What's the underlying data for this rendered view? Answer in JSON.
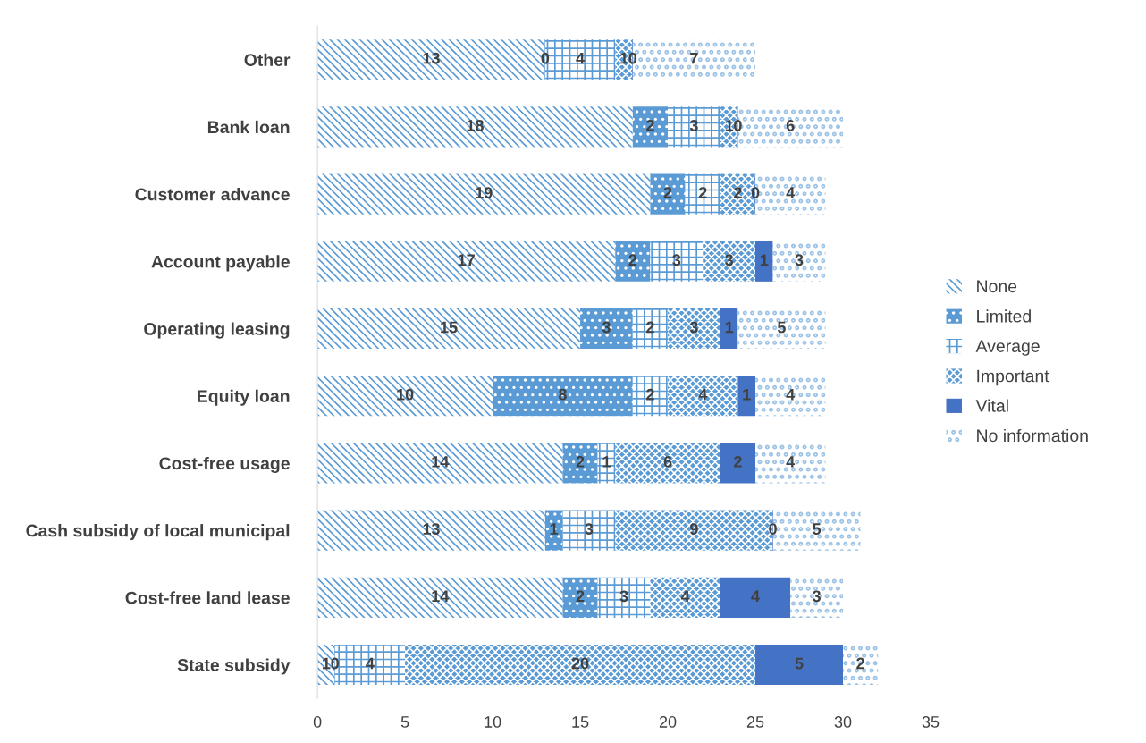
{
  "chart_data": {
    "type": "bar",
    "orientation": "horizontal",
    "stacked": true,
    "legend": "right",
    "grid": false,
    "categories": [
      "Other",
      "Bank loan",
      "Customer advance",
      "Account payable",
      "Operating leasing",
      "Equity loan",
      "Cost-free usage",
      "Cash subsidy of local municipal",
      "Cost-free land lease",
      "State subsidy"
    ],
    "series": [
      {
        "name": "None",
        "color": "#5b9bd5",
        "values": [
          13,
          18,
          19,
          17,
          15,
          10,
          14,
          13,
          14,
          1
        ],
        "value_labels": [
          "13",
          "18",
          "19",
          "17",
          "15",
          "10",
          "14",
          "13",
          "14",
          "1"
        ]
      },
      {
        "name": "Limited",
        "color": "#5b9bd5",
        "values": [
          0,
          2,
          2,
          2,
          3,
          8,
          2,
          1,
          2,
          0
        ],
        "value_labels": [
          "0",
          "2",
          "2",
          "2",
          "3",
          "8",
          "2",
          "1",
          "2",
          "0"
        ]
      },
      {
        "name": "Average",
        "color": "#5b9bd5",
        "values": [
          4,
          3,
          2,
          3,
          2,
          2,
          1,
          3,
          3,
          4
        ],
        "value_labels": [
          "4",
          "3",
          "2",
          "3",
          "2",
          "2",
          "1",
          "3",
          "3",
          "4"
        ]
      },
      {
        "name": "Important",
        "color": "#5b9bd5",
        "values": [
          1,
          1,
          2,
          3,
          3,
          4,
          6,
          9,
          4,
          20
        ],
        "value_labels": [
          "1",
          "1",
          "2",
          "3",
          "3",
          "4",
          "6",
          "9",
          "4",
          "20"
        ]
      },
      {
        "name": "Vital",
        "color": "#4472c4",
        "values": [
          0,
          0,
          0,
          1,
          1,
          1,
          2,
          0,
          4,
          5
        ],
        "value_labels": [
          "0",
          "0",
          "0",
          "1",
          "1",
          "1",
          "2",
          "0",
          "4",
          "5"
        ]
      },
      {
        "name": "No information",
        "color": "#9dc3e6",
        "values": [
          7,
          6,
          4,
          3,
          5,
          4,
          4,
          5,
          3,
          2
        ],
        "value_labels": [
          "7",
          "6",
          "4",
          "3",
          "5",
          "4",
          "4",
          "5",
          "3",
          "2"
        ]
      }
    ],
    "xlim": [
      0,
      35
    ],
    "xticks": [
      0,
      5,
      10,
      15,
      20,
      25,
      30,
      35
    ]
  }
}
